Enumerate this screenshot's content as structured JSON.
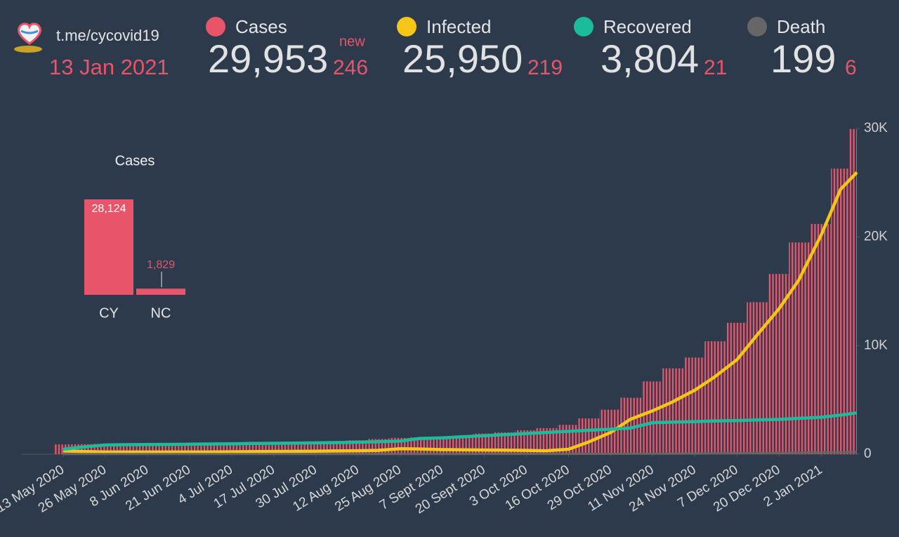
{
  "header": {
    "link": "t.me/cycovid19",
    "date": "13 Jan 2021",
    "new_label": "new",
    "stats": [
      {
        "total": "29,953",
        "new": 246
      },
      {
        "total": "25,950",
        "new": 219
      },
      {
        "total": "3,804",
        "new": 21
      },
      {
        "total": "199",
        "new": 6
      }
    ]
  },
  "chart_data": [
    {
      "type": "combo",
      "x": [
        "2020-05-13",
        "2020-05-19",
        "2020-05-26",
        "2020-06-01",
        "2020-06-08",
        "2020-06-14",
        "2020-06-21",
        "2020-06-27",
        "2020-07-04",
        "2020-07-10",
        "2020-07-17",
        "2020-07-23",
        "2020-07-30",
        "2020-08-05",
        "2020-08-12",
        "2020-08-18",
        "2020-08-25",
        "2020-08-31",
        "2020-09-07",
        "2020-09-13",
        "2020-09-20",
        "2020-09-26",
        "2020-10-03",
        "2020-10-09",
        "2020-10-16",
        "2020-10-22",
        "2020-10-29",
        "2020-11-04",
        "2020-11-11",
        "2020-11-17",
        "2020-11-24",
        "2020-11-30",
        "2020-12-07",
        "2020-12-13",
        "2020-12-20",
        "2020-12-26",
        "2021-01-02",
        "2021-01-08",
        "2021-01-13"
      ],
      "series": [
        {
          "name": "Cases",
          "type": "bar",
          "color": "#e8546a",
          "values": [
            900,
            920,
            950,
            960,
            970,
            980,
            985,
            990,
            1000,
            1020,
            1030,
            1050,
            1100,
            1180,
            1280,
            1400,
            1500,
            1550,
            1600,
            1700,
            1900,
            2000,
            2200,
            2400,
            2700,
            3300,
            4100,
            5200,
            6700,
            7900,
            8900,
            10400,
            12100,
            14000,
            16600,
            19500,
            21200,
            26300,
            29953
          ]
        },
        {
          "name": "Infected",
          "type": "line",
          "color": "#f5c518",
          "values": [
            300,
            250,
            200,
            200,
            200,
            200,
            200,
            200,
            220,
            230,
            250,
            260,
            280,
            300,
            320,
            350,
            500,
            480,
            420,
            400,
            380,
            370,
            350,
            320,
            450,
            1100,
            2000,
            3200,
            4000,
            4800,
            5900,
            7100,
            8700,
            10900,
            13400,
            16000,
            20200,
            24400,
            25950
          ]
        },
        {
          "name": "Recovered",
          "type": "line",
          "color": "#1abc9c",
          "values": [
            450,
            650,
            850,
            870,
            890,
            900,
            920,
            940,
            960,
            980,
            1000,
            1020,
            1040,
            1070,
            1100,
            1150,
            1200,
            1450,
            1500,
            1600,
            1700,
            1800,
            1900,
            2000,
            2100,
            2200,
            2300,
            2400,
            2900,
            2950,
            3000,
            3050,
            3100,
            3150,
            3200,
            3300,
            3400,
            3600,
            3804
          ]
        },
        {
          "name": "Death",
          "type": "line",
          "color": "#666666",
          "values": [
            15,
            15,
            17,
            17,
            18,
            18,
            19,
            19,
            19,
            19,
            19,
            19,
            19,
            20,
            20,
            20,
            20,
            21,
            22,
            22,
            23,
            23,
            25,
            27,
            29,
            32,
            35,
            38,
            42,
            47,
            55,
            70,
            90,
            110,
            125,
            145,
            160,
            180,
            199
          ]
        }
      ],
      "xlim": [
        "2020-04-30",
        "2021-01-13"
      ],
      "xticks": [
        {
          "value": "2020-05-13",
          "label": "13 May 2020"
        },
        {
          "value": "2020-05-26",
          "label": "26 May 2020"
        },
        {
          "value": "2020-06-08",
          "label": "8 Jun 2020"
        },
        {
          "value": "2020-06-21",
          "label": "21 Jun 2020"
        },
        {
          "value": "2020-07-04",
          "label": "4 Jul 2020"
        },
        {
          "value": "2020-07-17",
          "label": "17 Jul 2020"
        },
        {
          "value": "2020-07-30",
          "label": "30 Jul 2020"
        },
        {
          "value": "2020-08-12",
          "label": "12 Aug 2020"
        },
        {
          "value": "2020-08-25",
          "label": "25 Aug 2020"
        },
        {
          "value": "2020-09-07",
          "label": "7 Sept 2020"
        },
        {
          "value": "2020-09-20",
          "label": "20 Sept 2020"
        },
        {
          "value": "2020-10-03",
          "label": "3 Oct 2020"
        },
        {
          "value": "2020-10-16",
          "label": "16 Oct 2020"
        },
        {
          "value": "2020-10-29",
          "label": "29 Oct 2020"
        },
        {
          "value": "2020-11-11",
          "label": "11 Nov 2020"
        },
        {
          "value": "2020-11-24",
          "label": "24 Nov 2020"
        },
        {
          "value": "2020-12-07",
          "label": "7 Dec 2020"
        },
        {
          "value": "2020-12-20",
          "label": "20 Dec 2020"
        },
        {
          "value": "2021-01-02",
          "label": "2 Jan 2021"
        }
      ],
      "ylim": [
        0,
        30000
      ],
      "yticks": [
        0,
        {
          "value": 10000,
          "label": "10K"
        },
        {
          "value": 20000,
          "label": "20K"
        },
        {
          "value": 30000,
          "label": "30K"
        }
      ]
    },
    {
      "type": "bar",
      "title": "Cases",
      "categories": [
        "CY",
        "NC"
      ],
      "values": [
        28124,
        1829
      ],
      "value_labels": [
        "28,124",
        "1,829"
      ],
      "color": "#e8546a"
    }
  ]
}
